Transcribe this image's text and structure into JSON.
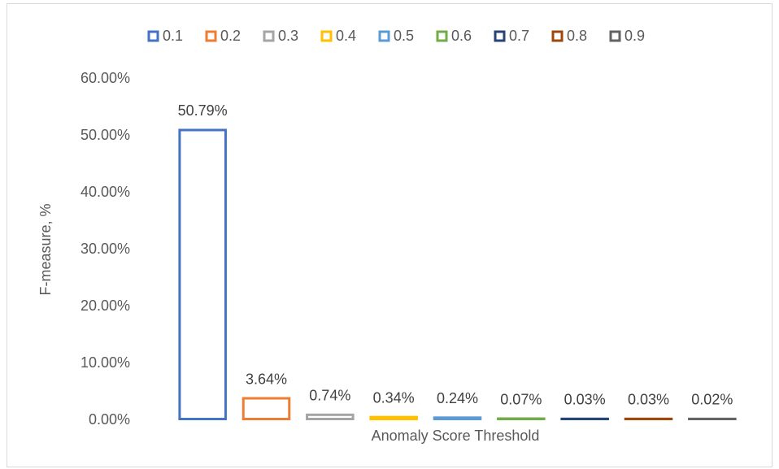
{
  "chart_data": {
    "type": "bar",
    "x_label": "Anomaly Score Threshold",
    "y_label": "F-measure, %",
    "categories": [
      null
    ],
    "series": [
      {
        "name": "0.1",
        "color": "#4472c4",
        "values": [
          50.79
        ],
        "value_labels": [
          "50.79%"
        ]
      },
      {
        "name": "0.2",
        "color": "#ed7d31",
        "values": [
          3.64
        ],
        "value_labels": [
          "3.64%"
        ]
      },
      {
        "name": "0.3",
        "color": "#a5a5a5",
        "values": [
          0.74
        ],
        "value_labels": [
          "0.74%"
        ]
      },
      {
        "name": "0.4",
        "color": "#ffc000",
        "values": [
          0.34
        ],
        "value_labels": [
          "0.34%"
        ]
      },
      {
        "name": "0.5",
        "color": "#5b9bd5",
        "values": [
          0.24
        ],
        "value_labels": [
          "0.24%"
        ]
      },
      {
        "name": "0.6",
        "color": "#70ad47",
        "values": [
          0.07
        ],
        "value_labels": [
          "0.07%"
        ]
      },
      {
        "name": "0.7",
        "color": "#264478",
        "values": [
          0.03
        ],
        "value_labels": [
          "0.03%"
        ]
      },
      {
        "name": "0.8",
        "color": "#9e480e",
        "values": [
          0.03
        ],
        "value_labels": [
          "0.03%"
        ]
      },
      {
        "name": "0.9",
        "color": "#636363",
        "values": [
          0.02
        ],
        "value_labels": [
          "0.02%"
        ]
      }
    ],
    "ylim": [
      0,
      60
    ],
    "yticks": [
      {
        "value": 0,
        "label": "0.00%"
      },
      {
        "value": 10,
        "label": "10.00%"
      },
      {
        "value": 20,
        "label": "20.00%"
      },
      {
        "value": 30,
        "label": "30.00%"
      },
      {
        "value": 40,
        "label": "40.00%"
      },
      {
        "value": 50,
        "label": "50.00%"
      },
      {
        "value": 60,
        "label": "60.00%"
      }
    ],
    "grid": false,
    "legend": "top"
  }
}
